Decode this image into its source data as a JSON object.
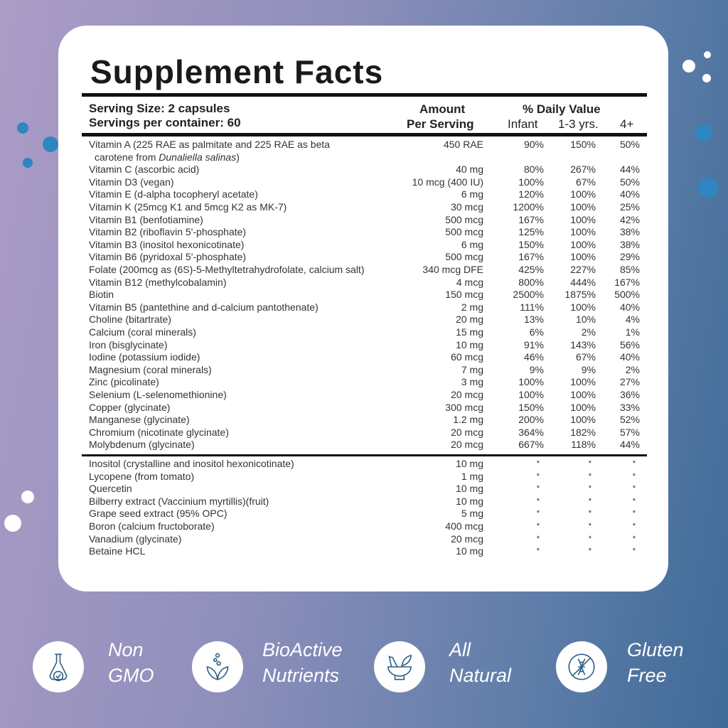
{
  "title": "Supplement Facts",
  "serving_size": "Serving Size: 2 capsules",
  "servings_per_container": "Servings per container: 60",
  "col_amount_1": "Amount",
  "col_amount_2": "Per Serving",
  "col_dv": "% Daily Value",
  "col_infant": "Infant",
  "col_13": "1-3 yrs.",
  "col_4": "4+",
  "vitamin_a": {
    "name_1": "Vitamin A (225 RAE as palmitate and 225 RAE as beta",
    "name_2": "carotene from ",
    "name_italic": "Dunaliella salinas",
    "name_3": ")",
    "amount": "450 RAE",
    "infant": "90%",
    "toddler": "150%",
    "adult": "50%"
  },
  "rows": [
    [
      "Vitamin C (ascorbic acid)",
      "40 mg",
      "80%",
      "267%",
      "44%"
    ],
    [
      "Vitamin D3 (vegan)",
      "10 mcg (400 IU)",
      "100%",
      "67%",
      "50%"
    ],
    [
      "Vitamin E (d-alpha tocopheryl acetate)",
      "6 mg",
      "120%",
      "100%",
      "40%"
    ],
    [
      "Vitamin K (25mcg K1 and 5mcg K2 as MK-7)",
      "30 mcg",
      "1200%",
      "100%",
      "25%"
    ],
    [
      "Vitamin B1 (benfotiamine)",
      "500 mcg",
      "167%",
      "100%",
      "42%"
    ],
    [
      "Vitamin B2 (riboflavin 5'-phosphate)",
      "500 mcg",
      "125%",
      "100%",
      "38%"
    ],
    [
      "Vitamin B3 (inositol hexonicotinate)",
      "6 mg",
      "150%",
      "100%",
      "38%"
    ],
    [
      "Vitamin B6 (pyridoxal 5'-phosphate)",
      "500 mcg",
      "167%",
      "100%",
      "29%"
    ],
    [
      "Folate (200mcg as (6S)-5-Methyltetrahydrofolate, calcium salt)",
      "340 mcg DFE",
      "425%",
      "227%",
      "85%"
    ],
    [
      "Vitamin B12 (methylcobalamin)",
      "4 mcg",
      "800%",
      "444%",
      "167%"
    ],
    [
      "Biotin",
      "150 mcg",
      "2500%",
      "1875%",
      "500%"
    ],
    [
      "Vitamin B5 (pantethine and d-calcium pantothenate)",
      "2 mg",
      "111%",
      "100%",
      "40%"
    ],
    [
      "Choline (bitartrate)",
      "20 mg",
      "13%",
      "10%",
      "4%"
    ],
    [
      "Calcium (coral minerals)",
      "15 mg",
      "6%",
      "2%",
      "1%"
    ],
    [
      "Iron (bisglycinate)",
      "10 mg",
      "91%",
      "143%",
      "56%"
    ],
    [
      "Iodine (potassium iodide)",
      "60 mcg",
      "46%",
      "67%",
      "40%"
    ],
    [
      "Magnesium (coral minerals)",
      "7 mg",
      "9%",
      "9%",
      "2%"
    ],
    [
      "Zinc (picolinate)",
      "3 mg",
      "100%",
      "100%",
      "27%"
    ],
    [
      "Selenium (L-selenomethionine)",
      "20 mcg",
      "100%",
      "100%",
      "36%"
    ],
    [
      "Copper (glycinate)",
      "300 mcg",
      "150%",
      "100%",
      "33%"
    ],
    [
      "Manganese (glycinate)",
      "1.2 mg",
      "200%",
      "100%",
      "52%"
    ],
    [
      "Chromium (nicotinate glycinate)",
      "20 mcg",
      "364%",
      "182%",
      "57%"
    ],
    [
      "Molybdenum (glycinate)",
      "20 mcg",
      "667%",
      "118%",
      "44%"
    ]
  ],
  "other_rows": [
    [
      "Inositol (crystalline and inositol hexonicotinate)",
      "10 mg",
      "*",
      "*",
      "*"
    ],
    [
      "Lycopene (from tomato)",
      "1 mg",
      "*",
      "*",
      "*"
    ],
    [
      "Quercetin",
      "10 mg",
      "*",
      "*",
      "*"
    ],
    [
      "Bilberry extract (Vaccinium myrtillis)(fruit)",
      "10 mg",
      "*",
      "*",
      "*"
    ],
    [
      "Grape seed extract (95% OPC)",
      "5 mg",
      "*",
      "*",
      "*"
    ],
    [
      "Boron (calcium fructoborate)",
      "400 mcg",
      "*",
      "*",
      "*"
    ],
    [
      "Vanadium (glycinate)",
      "20 mcg",
      "*",
      "*",
      "*"
    ],
    [
      "Betaine HCL",
      "10 mg",
      "*",
      "*",
      "*"
    ]
  ],
  "badges": [
    {
      "line1": "Non",
      "line2": "GMO",
      "icon": "flask-check-icon"
    },
    {
      "line1": "BioActive",
      "line2": "Nutrients",
      "icon": "leaves-bubbles-icon"
    },
    {
      "line1": "All",
      "line2": "Natural",
      "icon": "mortar-pestle-icon"
    },
    {
      "line1": "Gluten",
      "line2": "Free",
      "icon": "no-gluten-icon"
    }
  ],
  "colors": {
    "icon_stroke": "#2c5f86",
    "background_left": "#ab9cc6",
    "background_right": "#3f6a98"
  }
}
